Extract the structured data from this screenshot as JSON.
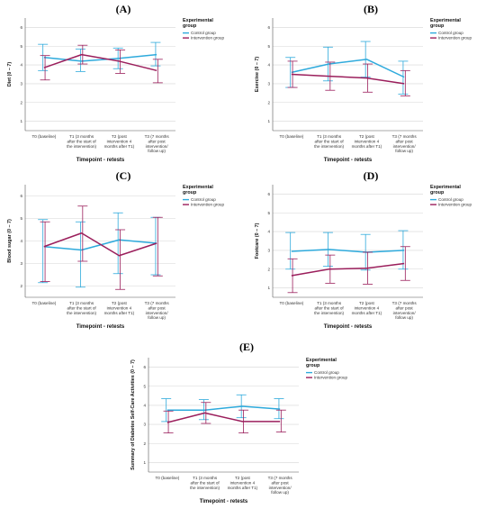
{
  "figure": {
    "x_label": "Timepoint - retests",
    "legend_title": [
      "Experimental",
      "group"
    ],
    "categories": [
      [
        "T0 (baseline)"
      ],
      [
        "T1 (3 months",
        "after the start of",
        "the intervention)"
      ],
      [
        "T2 (post",
        "intervention 4",
        "months after T1)"
      ],
      [
        "T3 (7 months",
        "after post",
        "intervention/",
        "follow up)"
      ]
    ],
    "colors": {
      "control": "#2eaadc",
      "intervention": "#9b1f5c"
    }
  },
  "chart_data": [
    {
      "panel_label": "(A)",
      "type": "line",
      "ylabel": "Diet (0 – 7)",
      "ylim": [
        0.5,
        6.5
      ],
      "yticks": [
        1,
        2,
        3,
        4,
        5,
        6
      ],
      "legend_position": "top-right",
      "grid": true,
      "series": [
        {
          "name": "Control group",
          "key": "control",
          "values": [
            4.4,
            4.2,
            4.35,
            4.55
          ],
          "err_low": [
            3.7,
            3.65,
            3.8,
            3.95
          ],
          "err_high": [
            5.1,
            4.85,
            4.9,
            5.2
          ]
        },
        {
          "name": "Intervention group",
          "key": "intervention",
          "values": [
            3.85,
            4.55,
            4.2,
            3.7
          ],
          "err_low": [
            3.2,
            4.05,
            3.55,
            3.05
          ],
          "err_high": [
            4.5,
            5.05,
            4.8,
            4.3
          ]
        }
      ]
    },
    {
      "panel_label": "(B)",
      "type": "line",
      "ylabel": "Exercise (0 – 7)",
      "ylim": [
        0.5,
        6.5
      ],
      "yticks": [
        1,
        2,
        3,
        4,
        5,
        6
      ],
      "legend_position": "top-right",
      "grid": true,
      "series": [
        {
          "name": "Control group",
          "key": "control",
          "values": [
            3.6,
            4.05,
            4.3,
            3.35
          ],
          "err_low": [
            2.8,
            3.15,
            3.35,
            2.45
          ],
          "err_high": [
            4.4,
            4.95,
            5.25,
            4.2
          ]
        },
        {
          "name": "Intervention group",
          "key": "intervention",
          "values": [
            3.5,
            3.4,
            3.3,
            3.0
          ],
          "err_low": [
            2.8,
            2.65,
            2.55,
            2.35
          ],
          "err_high": [
            4.2,
            4.15,
            4.05,
            3.7
          ]
        }
      ]
    },
    {
      "panel_label": "(C)",
      "type": "line",
      "ylabel": "Blood sugar (0 – 7)",
      "ylim": [
        1.5,
        6.5
      ],
      "yticks": [
        2,
        3,
        4,
        5,
        6
      ],
      "legend_position": "top-right",
      "grid": true,
      "series": [
        {
          "name": "Control group",
          "key": "control",
          "values": [
            3.75,
            3.6,
            4.05,
            3.9
          ],
          "err_low": [
            2.15,
            1.95,
            2.55,
            2.5
          ],
          "err_high": [
            4.95,
            4.85,
            5.25,
            5.05
          ]
        },
        {
          "name": "Intervention group",
          "key": "intervention",
          "values": [
            3.75,
            4.35,
            3.35,
            3.9
          ],
          "err_low": [
            2.2,
            3.1,
            1.85,
            2.45
          ],
          "err_high": [
            4.85,
            5.55,
            4.5,
            5.05
          ]
        }
      ]
    },
    {
      "panel_label": "(D)",
      "type": "line",
      "ylabel": "Footcare (0 – 7)",
      "ylim": [
        0.5,
        6.5
      ],
      "yticks": [
        1,
        2,
        3,
        4,
        5,
        6
      ],
      "legend_position": "top-right",
      "grid": true,
      "series": [
        {
          "name": "Control group",
          "key": "control",
          "values": [
            2.95,
            3.05,
            2.9,
            3.0
          ],
          "err_low": [
            2.0,
            2.15,
            1.95,
            2.0
          ],
          "err_high": [
            3.95,
            3.95,
            3.85,
            4.05
          ]
        },
        {
          "name": "Intervention group",
          "key": "intervention",
          "values": [
            1.65,
            2.0,
            2.05,
            2.3
          ],
          "err_low": [
            0.75,
            1.25,
            1.2,
            1.4
          ],
          "err_high": [
            2.55,
            2.75,
            2.9,
            3.2
          ]
        }
      ]
    },
    {
      "panel_label": "(E)",
      "type": "line",
      "ylabel": "Summary of Diabetes Self-Care Activities (0 – 7)",
      "ylim": [
        0.5,
        6.5
      ],
      "yticks": [
        1,
        2,
        3,
        4,
        5,
        6
      ],
      "legend_position": "top-right",
      "grid": true,
      "series": [
        {
          "name": "Control group",
          "key": "control",
          "values": [
            3.75,
            3.75,
            3.95,
            3.8
          ],
          "err_low": [
            3.15,
            3.25,
            3.35,
            3.3
          ],
          "err_high": [
            4.35,
            4.3,
            4.55,
            4.35
          ]
        },
        {
          "name": "Intervention group",
          "key": "intervention",
          "values": [
            3.1,
            3.6,
            3.15,
            3.15
          ],
          "err_low": [
            2.55,
            3.05,
            2.55,
            2.6
          ],
          "err_high": [
            3.7,
            4.15,
            3.75,
            3.75
          ]
        }
      ]
    }
  ]
}
